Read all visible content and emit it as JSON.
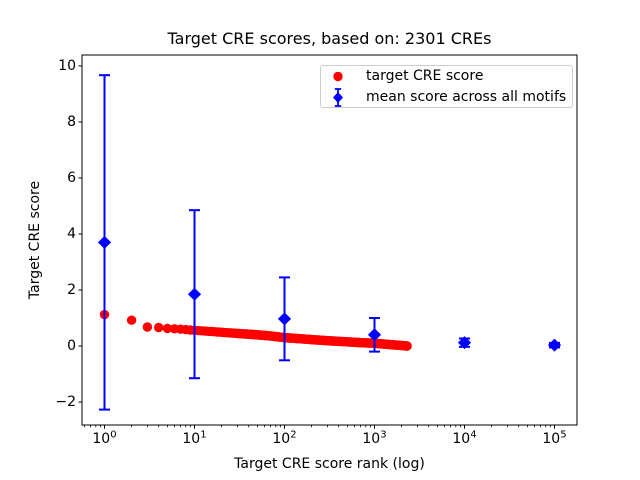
{
  "title": "Target CRE scores, based on: 2301 CREs",
  "axes": {
    "xlabel": "Target CRE score rank (log)",
    "ylabel": "Target CRE score",
    "x_tick_base": "10"
  },
  "legend": {
    "items": [
      {
        "label": "target CRE score",
        "marker": "red-circle",
        "color": "#ff0000"
      },
      {
        "label": "mean score across all motifs",
        "marker": "blue-diamond-errorbar",
        "color": "#0000ff"
      }
    ]
  },
  "colors": {
    "red": "#ff0000",
    "blue": "#0000ff",
    "spine": "#000000",
    "legend_border": "#cccccc",
    "background": "#ffffff"
  },
  "chart_data": {
    "type": "scatter",
    "title": "Target CRE scores, based on: 2301 CREs",
    "xlabel": "Target CRE score rank (log)",
    "ylabel": "Target CRE score",
    "x_scale": "log",
    "xlim": [
      0.5623,
      177828
    ],
    "ylim": [
      -2.82,
      10.39
    ],
    "x_tick_exponents": [
      0,
      1,
      2,
      3,
      4,
      5
    ],
    "x_tick_labels": [
      "10^0",
      "10^1",
      "10^2",
      "10^3",
      "10^4",
      "10^5"
    ],
    "y_ticks": [
      -2,
      0,
      2,
      4,
      6,
      8,
      10
    ],
    "grid": false,
    "legend_position": "upper right",
    "series": [
      {
        "name": "target CRE score",
        "type": "scatter",
        "marker": "circle",
        "color": "#ff0000",
        "n_points": 2301,
        "points_note": "dense decreasing band of 2301 ranked scores; anchor points [rank, score] read from plot, log-interpolated between anchors",
        "points": [
          [
            1,
            1.12
          ],
          [
            2,
            0.92
          ],
          [
            3,
            0.68
          ],
          [
            4,
            0.66
          ],
          [
            5,
            0.63
          ],
          [
            7,
            0.6
          ],
          [
            10,
            0.56
          ],
          [
            15,
            0.52
          ],
          [
            20,
            0.49
          ],
          [
            30,
            0.45
          ],
          [
            50,
            0.4
          ],
          [
            70,
            0.36
          ],
          [
            100,
            0.3
          ],
          [
            150,
            0.26
          ],
          [
            200,
            0.23
          ],
          [
            300,
            0.19
          ],
          [
            500,
            0.15
          ],
          [
            700,
            0.12
          ],
          [
            1000,
            0.1
          ],
          [
            1500,
            0.05
          ],
          [
            2000,
            0.02
          ],
          [
            2301,
            0.0
          ]
        ]
      },
      {
        "name": "mean score across all motifs",
        "type": "errorbar-scatter",
        "marker": "diamond",
        "color": "#0000ff",
        "points": [
          [
            1,
            3.7
          ],
          [
            10,
            1.85
          ],
          [
            100,
            0.97
          ],
          [
            1000,
            0.4
          ],
          [
            10000,
            0.12
          ],
          [
            100000,
            0.03
          ]
        ],
        "yerr": [
          5.97,
          3.0,
          1.48,
          0.6,
          0.15,
          0.08
        ]
      }
    ]
  }
}
